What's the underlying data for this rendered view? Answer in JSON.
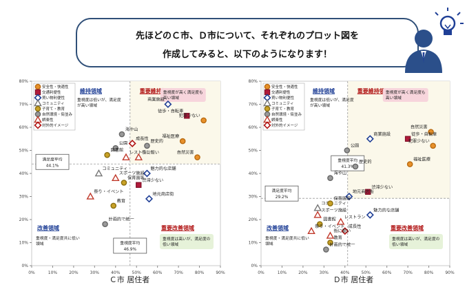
{
  "bubble": {
    "line1": "先ほどのＣ市、Ｄ市について、それぞれのプロット図を",
    "line2": "作成してみると、以下のようになります！"
  },
  "colors": {
    "bubble_border": "#2f4f78",
    "accent_blue": "#1f3f96",
    "quadrant_red": "#b01313",
    "grid_dash": "#999999"
  },
  "icons": [
    "person-icon",
    "lightbulb-icon"
  ],
  "chart_data": [
    {
      "type": "scatter",
      "caption": "Ｃ市 居住者",
      "xlim": [
        0,
        90
      ],
      "ylim": [
        0,
        80
      ],
      "xticks": [
        "0%",
        "10%",
        "20%",
        "30%",
        "40%",
        "50%",
        "60%",
        "70%",
        "80%",
        "90%"
      ],
      "yticks": [
        "0%",
        "10%",
        "20%",
        "30%",
        "40%",
        "50%",
        "60%",
        "70%",
        "80%"
      ],
      "grid": false,
      "legend_position": "top-left",
      "legend": [
        "安全性・快適性",
        "交通利便性",
        "買い物利便性",
        "コミュニティ",
        "子育て・教育",
        "自然環境・街並み",
        "娯楽性",
        "対外的イメージ"
      ],
      "quadrant_labels": {
        "top_left": "維持領域",
        "top_right": "重要維持領域",
        "bottom_left": "改善領域",
        "bottom_right": "重要改善領域"
      },
      "quadrant_notes": {
        "top_left": "重視度は低いが、満足度が高い領域",
        "top_right": "重視度が高く満足度も高い領域",
        "bottom_left": "重視度・満足度共に低い領域",
        "bottom_right": "重視度は高いが、満足度の低い領域"
      },
      "x_mean": 46.9,
      "y_mean": 44.1,
      "x_mean_label": "重視度平均",
      "x_mean_value": "46.9%",
      "y_mean_label": "満足度平均",
      "y_mean_value": "44.1%",
      "points": [
        {
          "label": "商業施設",
          "x": 65,
          "y": 70,
          "cat": 2
        },
        {
          "label": "徒歩・自転車",
          "x": 74,
          "y": 65,
          "cat": 1
        },
        {
          "label": "犯罪少ない",
          "x": 82,
          "y": 63,
          "cat": 0
        },
        {
          "label": "福祉医療",
          "x": 72,
          "y": 54,
          "cat": 0
        },
        {
          "label": "自然災害",
          "x": 79,
          "y": 47,
          "cat": 0
        },
        {
          "label": "海や山",
          "x": 43,
          "y": 57,
          "cat": 5
        },
        {
          "label": "成長性",
          "x": 48,
          "y": 53,
          "cat": 7
        },
        {
          "label": "公園",
          "x": 40,
          "y": 51,
          "cat": 5
        },
        {
          "label": "図書館",
          "x": 36,
          "y": 48,
          "cat": 4
        },
        {
          "label": "街に賑い",
          "x": 51,
          "y": 47,
          "cat": 6
        },
        {
          "label": "歴史的",
          "x": 55,
          "y": 52,
          "cat": 5
        },
        {
          "label": "レストラン",
          "x": 45,
          "y": 47,
          "cat": 6
        },
        {
          "label": "魅力的な店舗",
          "x": 55,
          "y": 40,
          "cat": 2
        },
        {
          "label": "コミュニティ",
          "x": 32,
          "y": 40,
          "cat": 3
        },
        {
          "label": "スポーツ施設",
          "x": 40,
          "y": 38,
          "cat": 6
        },
        {
          "label": "保育園等",
          "x": 44,
          "y": 36,
          "cat": 4
        },
        {
          "label": "渋滞少ない",
          "x": 51,
          "y": 35,
          "cat": 1
        },
        {
          "label": "祭り・イベント",
          "x": 28,
          "y": 30,
          "cat": 6
        },
        {
          "label": "教育",
          "x": 39,
          "y": 26,
          "cat": 4
        },
        {
          "label": "地元商店街",
          "x": 56,
          "y": 29,
          "cat": 2
        },
        {
          "label": "計画的で統一",
          "x": 35,
          "y": 18,
          "cat": 5
        }
      ]
    },
    {
      "type": "scatter",
      "caption": "Ｄ市 居住者",
      "xlim": [
        0,
        90
      ],
      "ylim": [
        0,
        80
      ],
      "xticks": [
        "0%",
        "10%",
        "20%",
        "30%",
        "40%",
        "50%",
        "60%",
        "70%",
        "80%",
        "90%"
      ],
      "yticks": [
        "0%",
        "10%",
        "20%",
        "30%",
        "40%",
        "50%",
        "60%",
        "70%",
        "80%"
      ],
      "grid": false,
      "legend_position": "top-left",
      "legend": [
        "安全性・快適性",
        "交通利便性",
        "買い物利便性",
        "コミュニティ",
        "子育て・教育",
        "自然環境・街並み",
        "娯楽性",
        "対外的イメージ"
      ],
      "quadrant_labels": {
        "top_left": "維持領域",
        "top_right": "重要維持領域",
        "bottom_left": "改善領域",
        "bottom_right": "重要改善領域"
      },
      "quadrant_notes": {
        "top_left": "重視度は低いが、満足度が高い領域",
        "top_right": "重視度が高く満足度も高い領域",
        "bottom_left": "重視度・満足度共に低い領域",
        "bottom_right": "重視度は高いが、満足度の低い領域"
      },
      "x_mean": 41.3,
      "y_mean": 29.2,
      "x_mean_label": "重視度平均",
      "x_mean_value": "41.3%",
      "y_mean_label": "満足度平均",
      "y_mean_value": "29.2%",
      "points": [
        {
          "label": "自然災害",
          "x": 81,
          "y": 58,
          "cat": 0
        },
        {
          "label": "徒歩・自転車",
          "x": 70,
          "y": 55,
          "cat": 1
        },
        {
          "label": "商業施設",
          "x": 52,
          "y": 55,
          "cat": 2
        },
        {
          "label": "犯罪少ない",
          "x": 82,
          "y": 52,
          "cat": 0
        },
        {
          "label": "福祉医療",
          "x": 71,
          "y": 44,
          "cat": 0
        },
        {
          "label": "公園",
          "x": 41,
          "y": 50,
          "cat": 5
        },
        {
          "label": "歴史的",
          "x": 45,
          "y": 43,
          "cat": 5
        },
        {
          "label": "海や山",
          "x": 33,
          "y": 38,
          "cat": 5
        },
        {
          "label": "渋滞少ない",
          "x": 51,
          "y": 32,
          "cat": 1
        },
        {
          "label": "地元商店街",
          "x": 42,
          "y": 30,
          "cat": 2
        },
        {
          "label": "コミュニティ",
          "x": 27,
          "y": 25,
          "cat": 3
        },
        {
          "label": "保育園等",
          "x": 33,
          "y": 27,
          "cat": 4
        },
        {
          "label": "スポーツ施設",
          "x": 27,
          "y": 22,
          "cat": 6
        },
        {
          "label": "図書館",
          "x": 28,
          "y": 18,
          "cat": 4
        },
        {
          "label": "レストラン",
          "x": 38,
          "y": 19,
          "cat": 6
        },
        {
          "label": "魅力的な店舗",
          "x": 52,
          "y": 22,
          "cat": 2
        },
        {
          "label": "祭り・イベント",
          "x": 24,
          "y": 15,
          "cat": 6
        },
        {
          "label": "成長性",
          "x": 40,
          "y": 15,
          "cat": 7
        },
        {
          "label": "街に賑い",
          "x": 33,
          "y": 13,
          "cat": 6
        },
        {
          "label": "教育",
          "x": 33,
          "y": 10,
          "cat": 4
        },
        {
          "label": "計画的で統一",
          "x": 31,
          "y": 7,
          "cat": 5
        }
      ]
    }
  ]
}
